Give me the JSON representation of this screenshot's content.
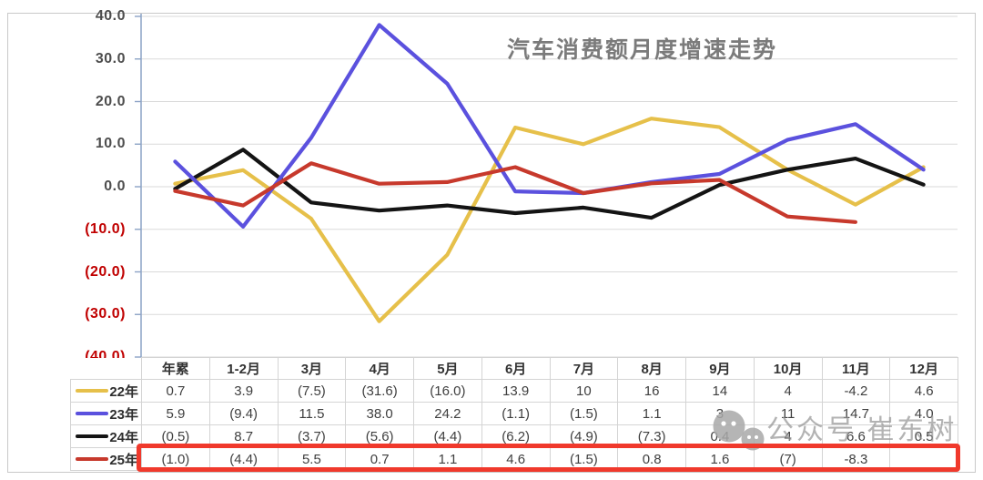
{
  "title": "汽车消费额月度增速走势",
  "watermark": {
    "text": "公众号 崔东树",
    "icon": "wechat-icon"
  },
  "chart_data": {
    "type": "line",
    "title": "汽车消费额月度增速走势",
    "categories": [
      "年累",
      "1-2月",
      "3月",
      "4月",
      "5月",
      "6月",
      "7月",
      "8月",
      "9月",
      "10月",
      "11月",
      "12月"
    ],
    "xlabel": "",
    "ylabel": "",
    "ylim": [
      -40,
      40
    ],
    "ytick_interval": 10,
    "ytick_labels": [
      {
        "text": "40.0",
        "negative": false
      },
      {
        "text": "30.0",
        "negative": false
      },
      {
        "text": "20.0",
        "negative": false
      },
      {
        "text": "10.0",
        "negative": false
      },
      {
        "text": "0.0",
        "negative": false
      },
      {
        "text": "(10.0)",
        "negative": true
      },
      {
        "text": "(20.0)",
        "negative": true
      },
      {
        "text": "(30.0)",
        "negative": true
      },
      {
        "text": "(40.0)",
        "negative": true
      }
    ],
    "grid": true,
    "legend_position": "left-of-table-rows",
    "series": [
      {
        "name": "22年",
        "color": "#e6c04a",
        "values": [
          0.7,
          3.9,
          -7.5,
          -31.6,
          -16.0,
          13.9,
          10,
          16,
          14,
          4,
          -4.2,
          4.6
        ]
      },
      {
        "name": "23年",
        "color": "#5b51de",
        "values": [
          5.9,
          -9.4,
          11.5,
          38.0,
          24.2,
          -1.1,
          -1.5,
          1.1,
          3,
          11,
          14.7,
          4.0
        ]
      },
      {
        "name": "24年",
        "color": "#141414",
        "values": [
          -0.5,
          8.7,
          -3.7,
          -5.6,
          -4.4,
          -6.2,
          -4.9,
          -7.3,
          0.4,
          4,
          6.6,
          0.5
        ]
      },
      {
        "name": "25年",
        "color": "#c7392c",
        "values": [
          -1.0,
          -4.4,
          5.5,
          0.7,
          1.1,
          4.6,
          -1.5,
          0.8,
          1.6,
          -7,
          -8.3,
          null
        ]
      }
    ]
  },
  "table": {
    "col_headers": [
      "年累",
      "1-2月",
      "3月",
      "4月",
      "5月",
      "6月",
      "7月",
      "8月",
      "9月",
      "10月",
      "11月",
      "12月"
    ],
    "rows": [
      {
        "label": "22年",
        "color": "#e6c04a",
        "cells": [
          "0.7",
          "3.9",
          "(7.5)",
          "(31.6)",
          "(16.0)",
          "13.9",
          "10",
          "16",
          "14",
          "4",
          "-4.2",
          "4.6"
        ]
      },
      {
        "label": "23年",
        "color": "#5b51de",
        "cells": [
          "5.9",
          "(9.4)",
          "11.5",
          "38.0",
          "24.2",
          "(1.1)",
          "(1.5)",
          "1.1",
          "3",
          "11",
          "14.7",
          "4.0"
        ]
      },
      {
        "label": "24年",
        "color": "#141414",
        "cells": [
          "(0.5)",
          "8.7",
          "(3.7)",
          "(5.6)",
          "(4.4)",
          "(6.2)",
          "(4.9)",
          "(7.3)",
          "0.4",
          "4",
          "6.6",
          "0.5"
        ]
      },
      {
        "label": "25年",
        "color": "#c7392c",
        "cells": [
          "(1.0)",
          "(4.4)",
          "5.5",
          "0.7",
          "1.1",
          "4.6",
          "(1.5)",
          "0.8",
          "1.6",
          "(7)",
          "-8.3",
          ""
        ]
      }
    ],
    "highlighted_row": "25年"
  },
  "colors": {
    "highlight_border": "#f0392c",
    "axis": "#8ca3c6",
    "gridline": "#dadada",
    "negative_tick": "#c00000",
    "title_text": "#7b7b7b",
    "watermark": "#969696",
    "table_border": "#d4d4d4"
  }
}
